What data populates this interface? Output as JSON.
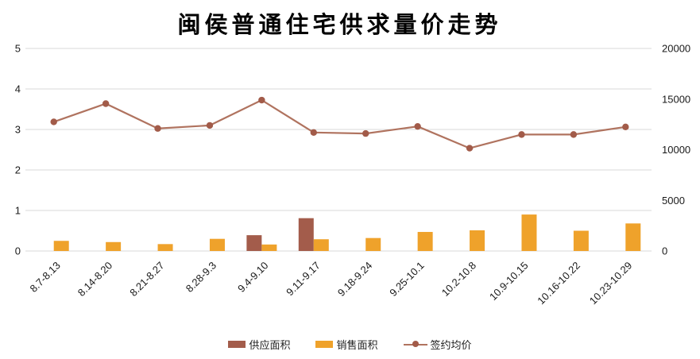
{
  "title": "闽侯普通住宅供求量价走势",
  "colors": {
    "supply": "#a35c4b",
    "sales": "#efa22b",
    "price_line": "#b0735f",
    "price_marker": "#a25b49",
    "gridline": "#d9d9d9",
    "axis_text": "#1a1a1a",
    "background": "#ffffff"
  },
  "legend": {
    "items": [
      {
        "label": "供应面积",
        "type": "bar",
        "color_key": "supply"
      },
      {
        "label": "销售面积",
        "type": "bar",
        "color_key": "sales"
      },
      {
        "label": "签约均价",
        "type": "line",
        "color_key": "price_line"
      }
    ]
  },
  "chart_data": {
    "type": "combo",
    "title": "闽侯普通住宅供求量价走势",
    "categories": [
      "8.7-8.13",
      "8.14-8.20",
      "8.21-8.27",
      "8.28-9.3",
      "9.4-9.10",
      "9.11-9.17",
      "9.18-9.24",
      "9.25-10.1",
      "10.2-10.8",
      "10.9-10.15",
      "10.16-10.22",
      "10.23-10.29"
    ],
    "series": [
      {
        "name": "供应面积",
        "type": "bar",
        "axis": "left",
        "color": "#a35c4b",
        "values": [
          0,
          0,
          0,
          0,
          0.39,
          0.81,
          0,
          0,
          0,
          0,
          0,
          0
        ]
      },
      {
        "name": "销售面积",
        "type": "bar",
        "axis": "left",
        "color": "#efa22b",
        "values": [
          0.25,
          0.22,
          0.17,
          0.3,
          0.16,
          0.29,
          0.32,
          0.47,
          0.51,
          0.9,
          0.5,
          0.68
        ]
      },
      {
        "name": "签约均价",
        "type": "line",
        "axis": "right",
        "color": "#b0735f",
        "marker_color": "#a25b49",
        "values": [
          12750,
          14550,
          12100,
          12400,
          14900,
          11700,
          11600,
          12300,
          10150,
          11500,
          11500,
          12250
        ]
      }
    ],
    "y_left": {
      "min": 0,
      "max": 5,
      "ticks": [
        0,
        1,
        2,
        3,
        4,
        5
      ]
    },
    "y_right": {
      "min": 0,
      "max": 20000,
      "ticks": [
        0,
        5000,
        10000,
        15000,
        20000
      ]
    },
    "grid": true,
    "legend_position": "bottom",
    "x_label_rotation": -45
  }
}
